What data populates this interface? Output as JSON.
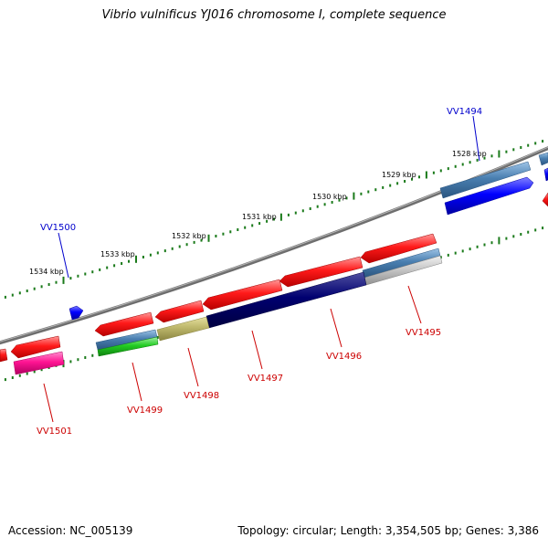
{
  "title": "Vibrio vulnificus YJ016 chromosome I, complete sequence",
  "footer": {
    "accession": "Accession: NC_005139",
    "stats": "Topology: circular; Length: 3,354,505 bp; Genes: 3,386"
  },
  "colors": {
    "backbone": "#7a7a7a",
    "tick": "#1a7a1a",
    "forward_label": "#0000cc",
    "reverse_label": "#cc0000"
  },
  "scale_labels": [
    "1528 kbp",
    "1529 kbp",
    "1530 kbp",
    "1531 kbp",
    "1532 kbp",
    "1533 kbp",
    "1534 kbp"
  ],
  "genes": [
    {
      "label": "VV1494",
      "strand": "forward"
    },
    {
      "label": "VV1495",
      "strand": "reverse"
    },
    {
      "label": "VV1496",
      "strand": "reverse"
    },
    {
      "label": "VV1497",
      "strand": "reverse"
    },
    {
      "label": "VV1498",
      "strand": "reverse"
    },
    {
      "label": "VV1499",
      "strand": "reverse"
    },
    {
      "label": "VV1500",
      "strand": "forward"
    },
    {
      "label": "VV1501",
      "strand": "reverse"
    }
  ]
}
